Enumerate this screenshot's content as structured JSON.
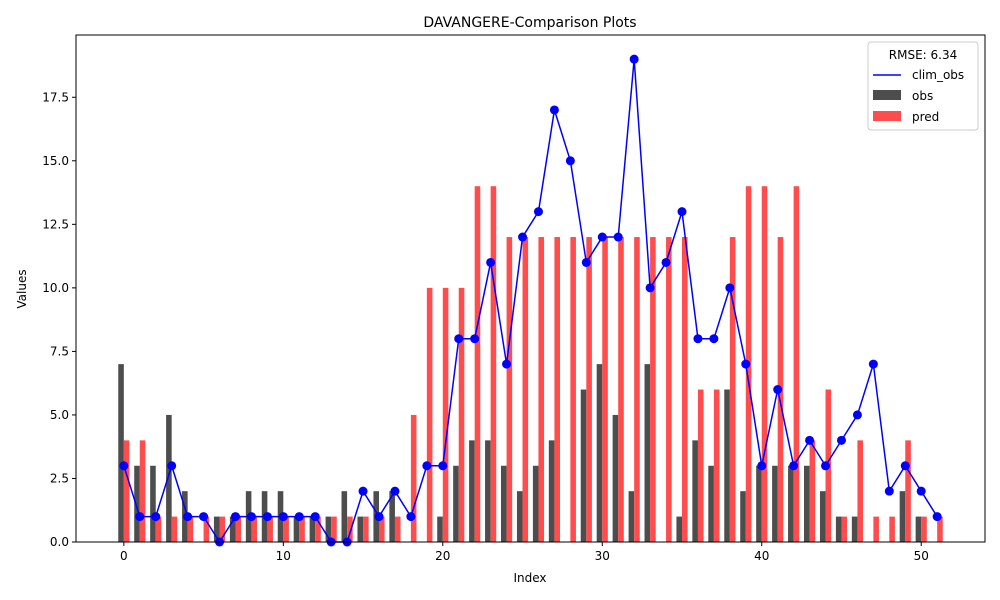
{
  "chart_data": {
    "type": "bar",
    "title": "DAVANGERE-Comparison Plots",
    "xlabel": "Index",
    "ylabel": "Values",
    "xlim": [
      -3,
      54
    ],
    "ylim": [
      0,
      19.95
    ],
    "x_ticks": [
      0,
      10,
      20,
      30,
      40,
      50
    ],
    "y_ticks": [
      0.0,
      2.5,
      5.0,
      7.5,
      10.0,
      12.5,
      15.0,
      17.5
    ],
    "grid": false,
    "legend": {
      "title": "RMSE: 6.34",
      "placement": "top-right",
      "entries": [
        "clim_obs",
        "obs",
        "pred"
      ]
    },
    "x": [
      0,
      1,
      2,
      3,
      4,
      5,
      6,
      7,
      8,
      9,
      10,
      11,
      12,
      13,
      14,
      15,
      16,
      17,
      18,
      19,
      20,
      21,
      22,
      23,
      24,
      25,
      26,
      27,
      28,
      29,
      30,
      31,
      32,
      33,
      34,
      35,
      36,
      37,
      38,
      39,
      40,
      41,
      42,
      43,
      44,
      45,
      46,
      47,
      48,
      49,
      50,
      51
    ],
    "series": [
      {
        "name": "obs",
        "kind": "bar",
        "color": "#4d4d4d",
        "values": [
          7,
          3,
          3,
          5,
          2,
          0,
          1,
          1,
          2,
          2,
          2,
          1,
          1,
          1,
          2,
          1,
          2,
          2,
          0,
          0,
          1,
          3,
          4,
          4,
          3,
          2,
          3,
          4,
          0,
          6,
          7,
          5,
          2,
          7,
          0,
          1,
          4,
          3,
          6,
          2,
          3,
          3,
          3,
          3,
          2,
          1,
          1,
          0,
          0,
          2,
          1,
          0
        ]
      },
      {
        "name": "pred",
        "kind": "bar",
        "color": "#ff4d4d",
        "values": [
          4,
          4,
          1,
          1,
          1,
          1,
          1,
          1,
          1,
          1,
          1,
          1,
          1,
          1,
          1,
          1,
          1,
          1,
          5,
          10,
          10,
          10,
          14,
          14,
          12,
          12,
          12,
          12,
          12,
          12,
          12,
          12,
          12,
          12,
          12,
          12,
          6,
          6,
          12,
          14,
          14,
          12,
          14,
          4,
          6,
          1,
          4,
          1,
          1,
          4,
          1,
          1
        ]
      },
      {
        "name": "clim_obs",
        "kind": "line",
        "color": "#0000ff",
        "values": [
          3,
          1,
          1,
          3,
          1,
          1,
          0,
          1,
          1,
          1,
          1,
          1,
          1,
          0,
          0,
          2,
          1,
          2,
          1,
          3,
          3,
          8,
          8,
          11,
          7,
          12,
          13,
          17,
          15,
          11,
          12,
          12,
          19,
          10,
          11,
          13,
          8,
          8,
          10,
          7,
          3,
          6,
          3,
          4,
          3,
          4,
          5,
          7,
          2,
          3,
          2,
          1
        ]
      }
    ]
  }
}
